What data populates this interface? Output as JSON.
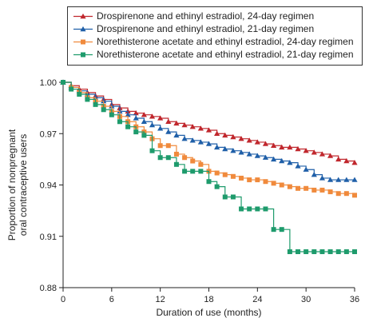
{
  "chart_data": {
    "type": "line",
    "title": "",
    "xlabel": "Duration of use (months)",
    "ylabel_lines": [
      "Proportion of nonpregnant",
      "oral contraceptive users"
    ],
    "xlim": [
      0,
      36
    ],
    "ylim": [
      0.88,
      1.0
    ],
    "xticks": [
      0,
      6,
      12,
      18,
      24,
      30,
      36
    ],
    "xtick_labels": [
      "0",
      "6",
      "12",
      "18",
      "24",
      "30",
      "36"
    ],
    "yticks": [
      0.88,
      0.91,
      0.94,
      0.97,
      1.0
    ],
    "ytick_labels": [
      "0.88",
      "0.91",
      "0.94",
      "0.97",
      "1.00"
    ],
    "grid": false,
    "legend_position": "top",
    "series": [
      {
        "name": "Drospirenone and ethinyl estradiol, 24-day regimen",
        "color": "#c0272d",
        "marker": "triangle",
        "x": [
          0,
          1,
          2,
          3,
          4,
          5,
          6,
          7,
          8,
          9,
          10,
          11,
          12,
          13,
          14,
          15,
          16,
          17,
          18,
          19,
          20,
          21,
          22,
          23,
          24,
          25,
          26,
          27,
          28,
          29,
          30,
          31,
          32,
          33,
          34,
          35,
          36
        ],
        "y": [
          1.0,
          0.998,
          0.996,
          0.994,
          0.992,
          0.99,
          0.987,
          0.985,
          0.983,
          0.982,
          0.981,
          0.98,
          0.979,
          0.977,
          0.976,
          0.975,
          0.974,
          0.973,
          0.972,
          0.97,
          0.969,
          0.968,
          0.967,
          0.966,
          0.965,
          0.964,
          0.963,
          0.962,
          0.962,
          0.961,
          0.96,
          0.959,
          0.958,
          0.957,
          0.955,
          0.954,
          0.953
        ]
      },
      {
        "name": "Drospirenone and ethinyl estradiol, 21-day regimen",
        "color": "#1f5fa8",
        "marker": "triangle",
        "x": [
          0,
          1,
          2,
          3,
          4,
          5,
          6,
          7,
          8,
          9,
          10,
          11,
          12,
          13,
          14,
          15,
          16,
          17,
          18,
          19,
          20,
          21,
          22,
          23,
          24,
          25,
          26,
          27,
          28,
          29,
          30,
          31,
          32,
          33,
          34,
          35,
          36
        ],
        "y": [
          1.0,
          0.997,
          0.995,
          0.993,
          0.991,
          0.989,
          0.986,
          0.983,
          0.981,
          0.979,
          0.977,
          0.975,
          0.973,
          0.971,
          0.969,
          0.967,
          0.966,
          0.965,
          0.964,
          0.962,
          0.961,
          0.96,
          0.959,
          0.958,
          0.957,
          0.956,
          0.955,
          0.954,
          0.953,
          0.951,
          0.949,
          0.946,
          0.944,
          0.943,
          0.943,
          0.943,
          0.943
        ]
      },
      {
        "name": "Norethisterone acetate and ethinyl estradiol, 24-day regimen",
        "color": "#f08a3c",
        "marker": "square",
        "x": [
          0,
          1,
          2,
          3,
          4,
          5,
          6,
          7,
          8,
          9,
          10,
          11,
          12,
          13,
          14,
          15,
          16,
          17,
          18,
          19,
          20,
          21,
          22,
          23,
          24,
          25,
          26,
          27,
          28,
          29,
          30,
          31,
          32,
          33,
          34,
          35,
          36
        ],
        "y": [
          1.0,
          0.997,
          0.994,
          0.991,
          0.989,
          0.986,
          0.983,
          0.98,
          0.977,
          0.974,
          0.971,
          0.967,
          0.963,
          0.963,
          0.958,
          0.956,
          0.954,
          0.952,
          0.948,
          0.947,
          0.946,
          0.945,
          0.944,
          0.943,
          0.943,
          0.942,
          0.941,
          0.94,
          0.939,
          0.938,
          0.938,
          0.937,
          0.937,
          0.936,
          0.935,
          0.935,
          0.934
        ]
      },
      {
        "name": "Norethisterone acetate and ethinyl estradiol, 21-day regimen",
        "color": "#1e9b6c",
        "marker": "square",
        "x": [
          0,
          1,
          2,
          3,
          4,
          5,
          6,
          7,
          8,
          9,
          10,
          11,
          12,
          13,
          14,
          15,
          16,
          17,
          18,
          19,
          20,
          21,
          22,
          23,
          24,
          25,
          26,
          27,
          28,
          29,
          30,
          31,
          32,
          33,
          34,
          35,
          36
        ],
        "y": [
          1.0,
          0.996,
          0.993,
          0.99,
          0.987,
          0.984,
          0.981,
          0.977,
          0.974,
          0.971,
          0.969,
          0.96,
          0.956,
          0.956,
          0.952,
          0.948,
          0.948,
          0.948,
          0.942,
          0.939,
          0.933,
          0.933,
          0.926,
          0.926,
          0.926,
          0.926,
          0.914,
          0.914,
          0.901,
          0.901,
          0.901,
          0.901,
          0.901,
          0.901,
          0.901,
          0.901,
          0.901
        ]
      }
    ]
  }
}
